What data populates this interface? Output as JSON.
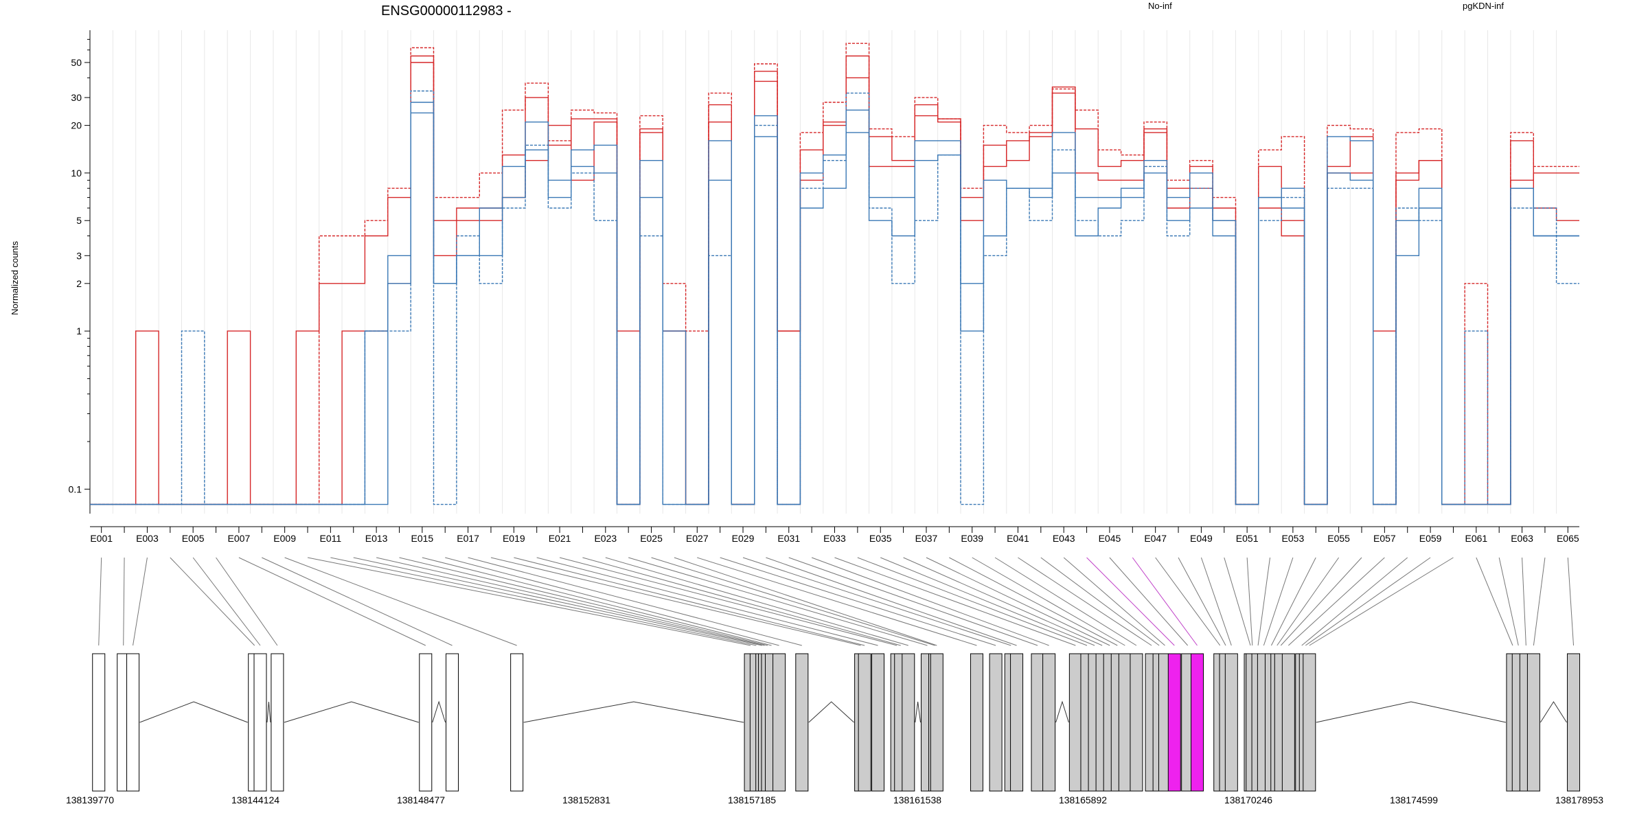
{
  "chart_data": {
    "type": "line",
    "title": "ENSG00000112983 -",
    "ylabel": "Normalized counts",
    "yscale": "log",
    "ylim": [
      0.07,
      80
    ],
    "yticks": [
      0.1,
      1,
      2,
      3,
      5,
      10,
      20,
      30,
      50
    ],
    "ytick_labels": [
      "0.1",
      "1",
      "2",
      "3",
      "5",
      "10",
      "20",
      "30",
      "50"
    ],
    "floor_value": 0.08,
    "bins": [
      "E001",
      "E002",
      "E003",
      "E004",
      "E005",
      "E006",
      "E007",
      "E008",
      "E009",
      "E010",
      "E011",
      "E012",
      "E013",
      "E014",
      "E015",
      "E016",
      "E017",
      "E018",
      "E019",
      "E020",
      "E021",
      "E022",
      "E023",
      "E024",
      "E025",
      "E026",
      "E027",
      "E028",
      "E029",
      "E030",
      "E031",
      "E032",
      "E033",
      "E034",
      "E035",
      "E036",
      "E037",
      "E038",
      "E039",
      "E040",
      "E041",
      "E042",
      "E043",
      "E044",
      "E045",
      "E046",
      "E047",
      "E048",
      "E049",
      "E050",
      "E051",
      "E052",
      "E053",
      "E054",
      "E055",
      "E056",
      "E057",
      "E058",
      "E059",
      "E060",
      "E061",
      "E062",
      "E063",
      "E064",
      "E065"
    ],
    "bin_labels": [
      "E001",
      "E003",
      "E005",
      "E007",
      "E009",
      "E011",
      "E013",
      "E015",
      "E017",
      "E019",
      "E021",
      "E023",
      "E025",
      "E027",
      "E029",
      "E031",
      "E033",
      "E035",
      "E037",
      "E039",
      "E041",
      "E043",
      "E045",
      "E047",
      "E049",
      "E051",
      "E053",
      "E055",
      "E057",
      "E059",
      "E061",
      "E063",
      "E065"
    ],
    "highlighted_bins": [
      "E044",
      "E046"
    ],
    "highlight_color": "#c040c8",
    "legend": [
      {
        "name": "No-inf",
        "color": "#d62728"
      },
      {
        "name": "pgKDN-inf",
        "color": "#3a78b5"
      }
    ],
    "series": [
      {
        "group": "No-inf",
        "color": "#d62728",
        "dashed": false,
        "values": [
          0,
          0,
          1,
          0,
          0,
          0,
          1,
          0,
          0,
          1,
          2,
          2,
          4,
          7,
          50,
          5,
          5,
          5,
          7,
          12,
          20,
          9,
          21,
          1,
          18,
          1,
          0,
          21,
          0,
          38,
          1,
          9,
          20,
          40,
          11,
          11,
          23,
          21,
          5,
          11,
          16,
          17,
          32,
          10,
          9,
          9,
          18,
          8,
          11,
          6,
          0,
          6,
          4,
          0,
          10,
          10,
          1,
          9,
          12,
          0,
          0,
          0,
          9,
          10,
          10
        ]
      },
      {
        "group": "No-inf",
        "color": "#d62728",
        "dashed": true,
        "values": [
          0,
          0,
          0,
          0,
          0,
          0,
          0,
          0,
          0,
          0,
          4,
          4,
          5,
          8,
          62,
          7,
          7,
          10,
          25,
          37,
          16,
          25,
          24,
          0,
          23,
          2,
          1,
          32,
          0,
          49,
          0,
          18,
          28,
          66,
          19,
          17,
          30,
          22,
          8,
          20,
          18,
          20,
          34,
          25,
          14,
          13,
          21,
          9,
          12,
          7,
          0,
          14,
          17,
          0,
          20,
          19,
          0,
          18,
          19,
          0,
          2,
          0,
          18,
          11,
          11
        ]
      },
      {
        "group": "No-inf",
        "color": "#d62728",
        "dashed": false,
        "values": [
          0,
          0,
          0,
          0,
          0,
          0,
          0,
          0,
          0,
          0,
          0,
          1,
          1,
          2,
          55,
          3,
          6,
          6,
          13,
          30,
          15,
          22,
          22,
          0,
          19,
          1,
          0,
          27,
          0,
          44,
          1,
          14,
          21,
          55,
          17,
          12,
          27,
          22,
          7,
          15,
          12,
          18,
          35,
          19,
          11,
          12,
          19,
          6,
          8,
          5,
          0,
          11,
          5,
          0,
          11,
          17,
          0,
          10,
          12,
          0,
          0,
          0,
          16,
          6,
          5
        ]
      },
      {
        "group": "pgKDN-inf",
        "color": "#3a78b5",
        "dashed": false,
        "values": [
          0,
          0,
          0,
          0,
          0,
          0,
          0,
          0,
          0,
          0,
          0,
          0,
          1,
          2,
          24,
          2,
          3,
          6,
          7,
          14,
          7,
          11,
          10,
          0,
          7,
          0,
          0,
          9,
          0,
          17,
          0,
          6,
          8,
          18,
          5,
          4,
          12,
          13,
          1,
          4,
          8,
          7,
          10,
          4,
          6,
          8,
          10,
          5,
          6,
          5,
          0,
          7,
          6,
          0,
          10,
          9,
          0,
          3,
          6,
          0,
          0,
          0,
          8,
          4,
          4
        ]
      },
      {
        "group": "pgKDN-inf",
        "color": "#3a78b5",
        "dashed": true,
        "values": [
          0,
          0,
          0,
          0,
          1,
          0,
          0,
          0,
          0,
          0,
          0,
          0,
          1,
          1,
          33,
          0,
          4,
          2,
          6,
          15,
          6,
          10,
          5,
          0,
          4,
          0,
          0,
          3,
          0,
          20,
          0,
          8,
          12,
          32,
          6,
          2,
          5,
          13,
          0,
          3,
          8,
          5,
          14,
          5,
          4,
          5,
          11,
          4,
          8,
          5,
          0,
          5,
          7,
          0,
          8,
          8,
          0,
          6,
          5,
          0,
          1,
          0,
          6,
          6,
          2
        ]
      },
      {
        "group": "pgKDN-inf",
        "color": "#3a78b5",
        "dashed": false,
        "values": [
          0,
          0,
          0,
          0,
          0,
          0,
          0,
          0,
          0,
          0,
          0,
          0,
          0,
          3,
          28,
          2,
          3,
          3,
          11,
          21,
          9,
          14,
          15,
          0,
          12,
          1,
          0,
          16,
          0,
          23,
          0,
          10,
          13,
          25,
          7,
          7,
          16,
          16,
          2,
          9,
          8,
          8,
          18,
          7,
          7,
          7,
          12,
          7,
          10,
          4,
          0,
          7,
          8,
          0,
          17,
          16,
          0,
          5,
          8,
          0,
          0,
          0,
          8,
          4,
          4
        ]
      }
    ],
    "gene_track": {
      "chromosome_axis_labels": [
        "138139770",
        "138144124",
        "138148477",
        "138152831",
        "138157185",
        "138161538",
        "138165892",
        "138170246",
        "138174599",
        "138178953"
      ],
      "coord_min": 138139770,
      "coord_max": 138178953,
      "exon_fill": "#cccccc",
      "highlight_fill": "#ee22ee",
      "bin_coords": [
        138140000,
        138140650,
        138140900,
        138144100,
        138144250,
        138144700,
        138148600,
        138149300,
        138151000,
        138157150,
        138157300,
        138157450,
        138157520,
        138157600,
        138157700,
        138157900,
        138158500,
        138160050,
        138160150,
        138160500,
        138161000,
        138161100,
        138161300,
        138161800,
        138162000,
        138162050,
        138163100,
        138163600,
        138164000,
        138164150,
        138164700,
        138165000,
        138165700,
        138166000,
        138166200,
        138166400,
        138166600,
        138166800,
        138167000,
        138167300,
        138167700,
        138167900,
        138168050,
        138168300,
        138168650,
        138168900,
        138169500,
        138169650,
        138169800,
        138170300,
        138170350,
        138170500,
        138170650,
        138170850,
        138171000,
        138171100,
        138171300,
        138171650,
        138171750,
        138171850,
        138177200,
        138177350,
        138177550,
        138177750,
        138178800
      ]
    }
  }
}
